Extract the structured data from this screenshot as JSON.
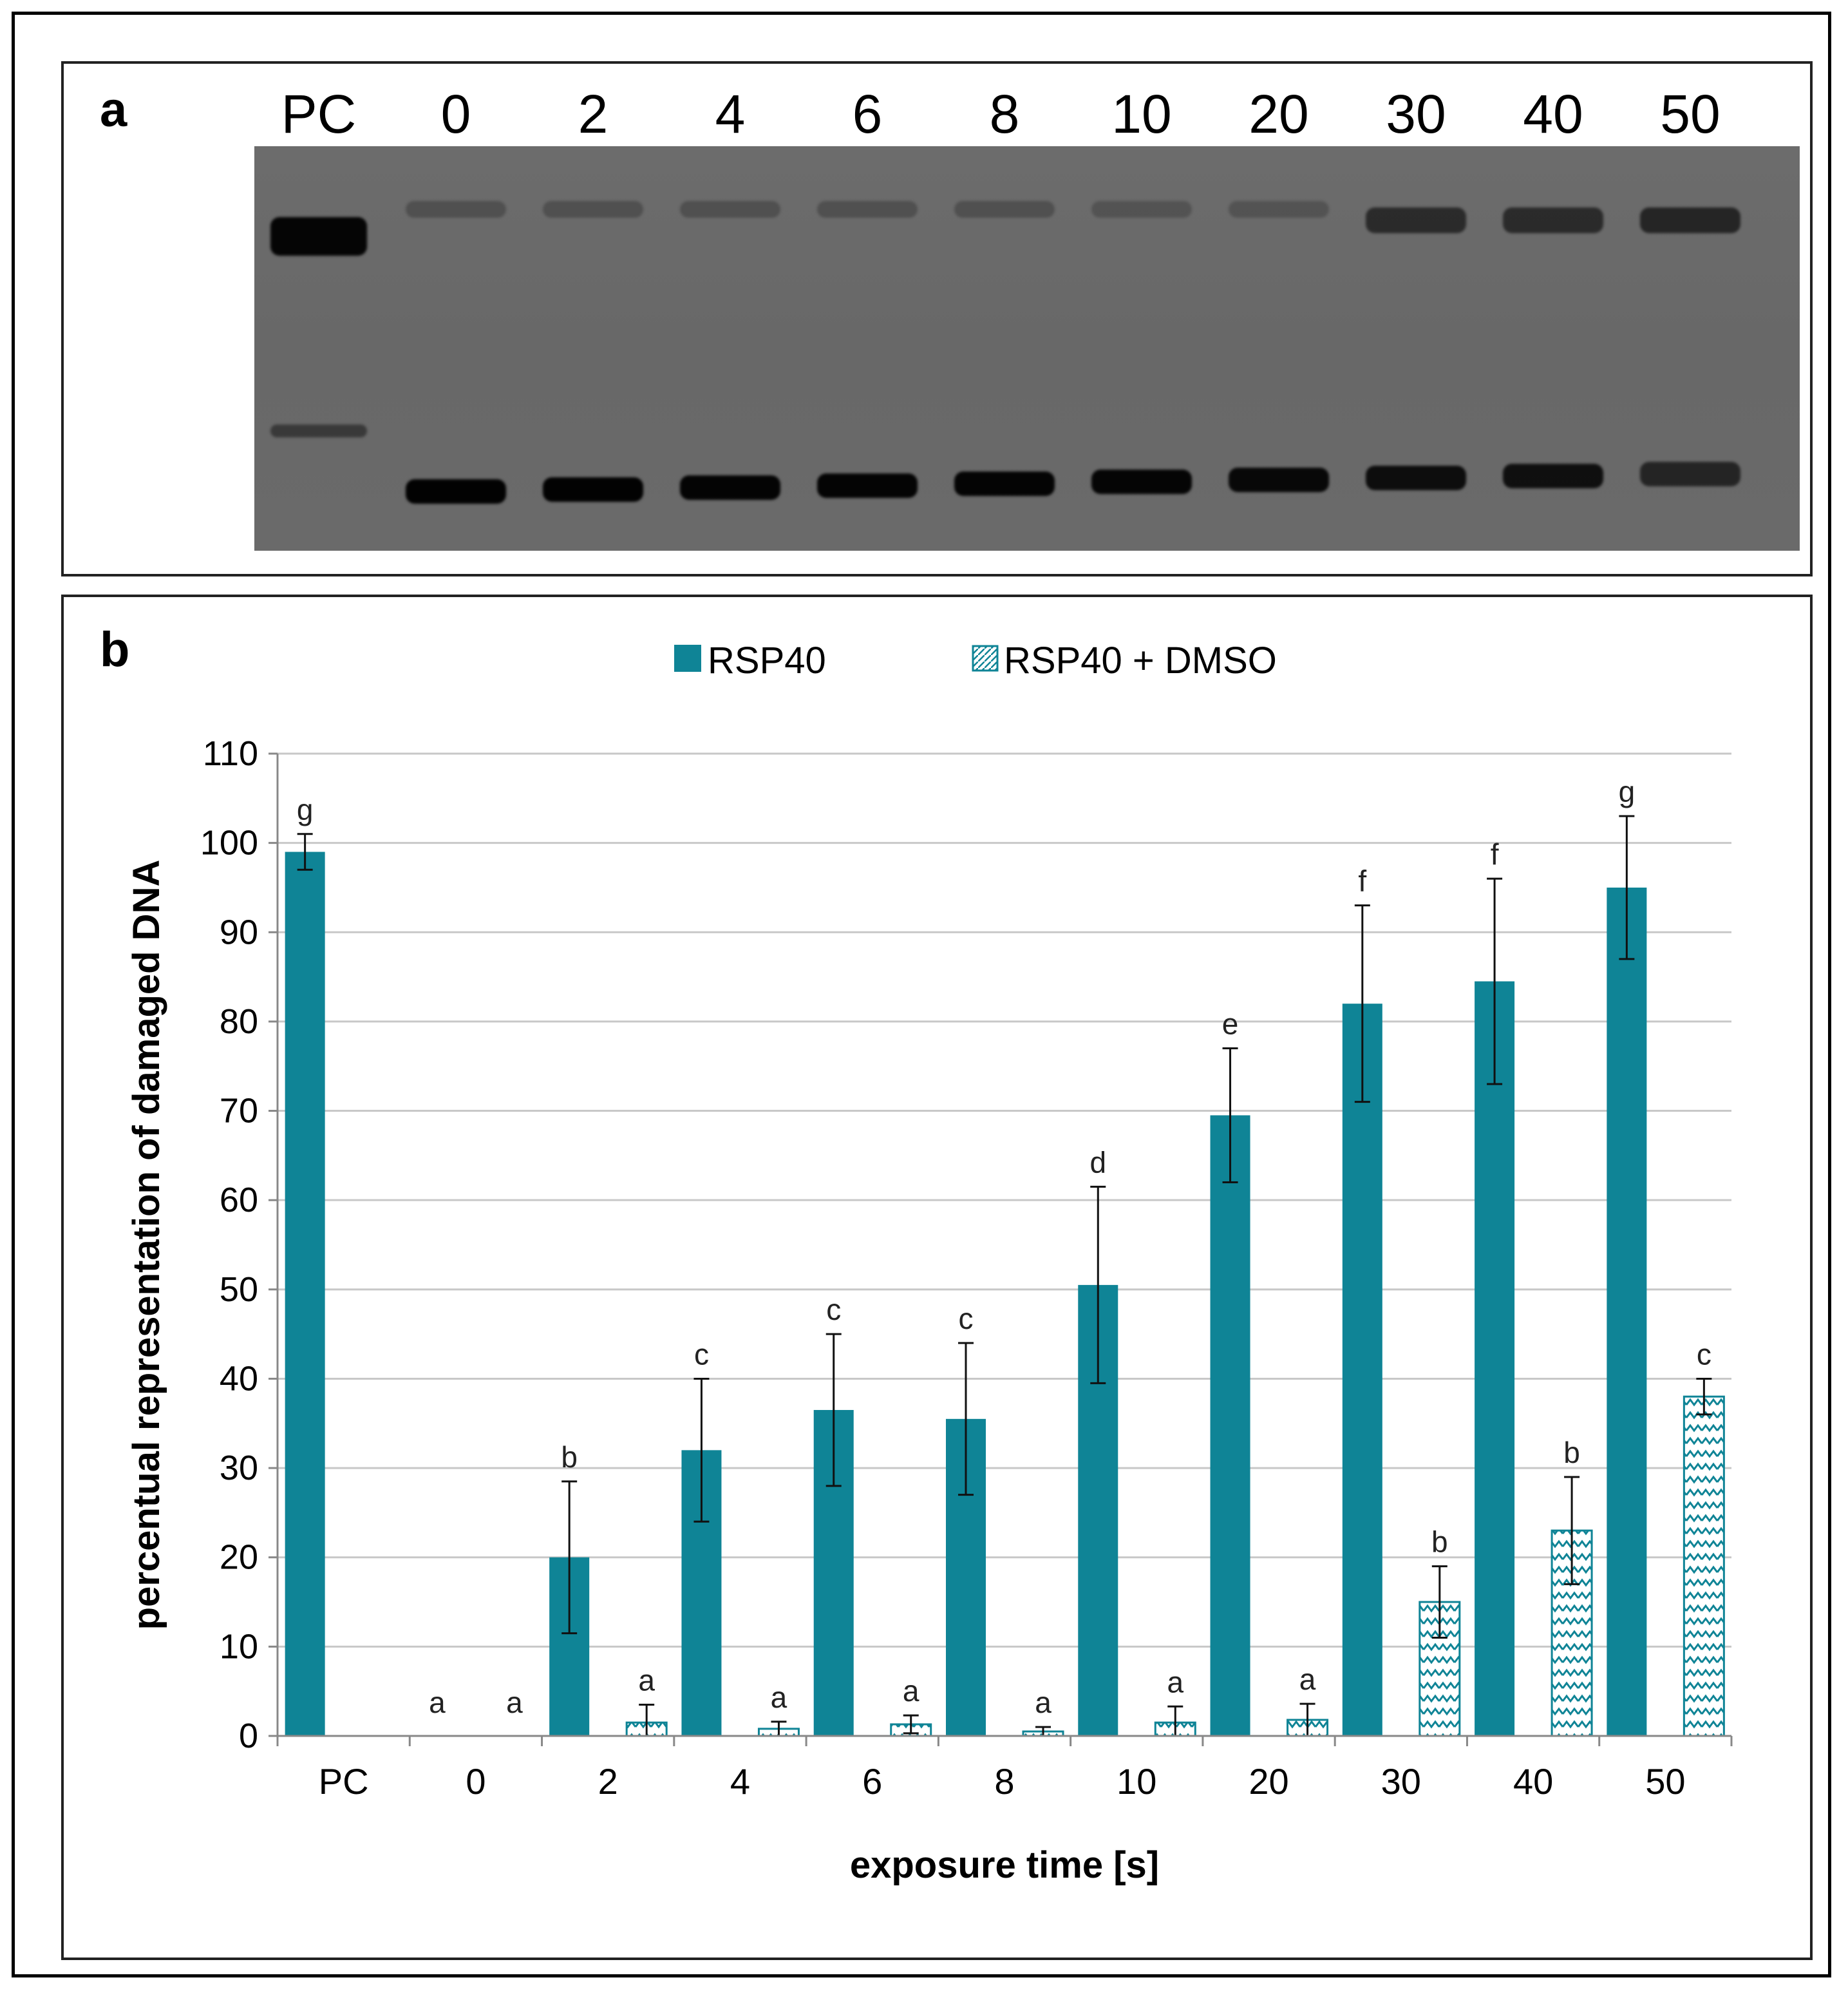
{
  "panel_a": {
    "letter": "a",
    "lanes": [
      {
        "label": "PC",
        "upper_intensity": 0.95,
        "lower_intensity": 0.45
      },
      {
        "label": "0",
        "upper_intensity": 0.25,
        "lower_intensity": 0.98
      },
      {
        "label": "2",
        "upper_intensity": 0.25,
        "lower_intensity": 0.98
      },
      {
        "label": "4",
        "upper_intensity": 0.25,
        "lower_intensity": 0.96
      },
      {
        "label": "6",
        "upper_intensity": 0.25,
        "lower_intensity": 0.96
      },
      {
        "label": "8",
        "upper_intensity": 0.25,
        "lower_intensity": 0.96
      },
      {
        "label": "10",
        "upper_intensity": 0.22,
        "lower_intensity": 0.95
      },
      {
        "label": "20",
        "upper_intensity": 0.22,
        "lower_intensity": 0.92
      },
      {
        "label": "30",
        "upper_intensity": 0.6,
        "lower_intensity": 0.88
      },
      {
        "label": "40",
        "upper_intensity": 0.6,
        "lower_intensity": 0.85
      },
      {
        "label": "50",
        "upper_intensity": 0.65,
        "lower_intensity": 0.65
      }
    ]
  },
  "panel_b": {
    "letter": "b"
  },
  "chart_data": {
    "type": "bar",
    "xlabel": "exposure time [s]",
    "ylabel": "percentual representation of damaged DNA",
    "ylim": [
      0,
      110
    ],
    "yticks": [
      0,
      10,
      20,
      30,
      40,
      50,
      60,
      70,
      80,
      90,
      100,
      110
    ],
    "grid": true,
    "legend_placement": "top-center",
    "categories": [
      "PC",
      "0",
      "2",
      "4",
      "6",
      "8",
      "10",
      "20",
      "30",
      "40",
      "50"
    ],
    "series": [
      {
        "name": "RSP40",
        "color": "#0f8496",
        "pattern": "solid",
        "values": [
          99,
          0,
          20,
          32,
          36.5,
          35.5,
          50.5,
          69.5,
          82,
          84.5,
          95
        ],
        "errors": [
          2,
          null,
          8.5,
          8,
          8.5,
          8.5,
          11,
          7.5,
          11,
          11.5,
          8
        ],
        "letters": [
          "g",
          "a",
          "b",
          "c",
          "c",
          "c",
          "d",
          "e",
          "f",
          "f",
          "g"
        ]
      },
      {
        "name": "RSP40 + DMSO",
        "color": "#0f8496",
        "pattern": "zigzag",
        "values": [
          null,
          0,
          1.5,
          0.8,
          1.3,
          0.5,
          1.5,
          1.8,
          15,
          23,
          38
        ],
        "errors": [
          null,
          null,
          2,
          0.8,
          1,
          0.5,
          1.8,
          1.8,
          4,
          6,
          2
        ],
        "letters": [
          null,
          "a",
          "a",
          "a",
          "a",
          "a",
          "a",
          "a",
          "b",
          "b",
          "c"
        ]
      }
    ]
  },
  "icons": {
    "legend_solid": "legend-solid-swatch-icon",
    "legend_hatched": "legend-hatched-swatch-icon"
  }
}
